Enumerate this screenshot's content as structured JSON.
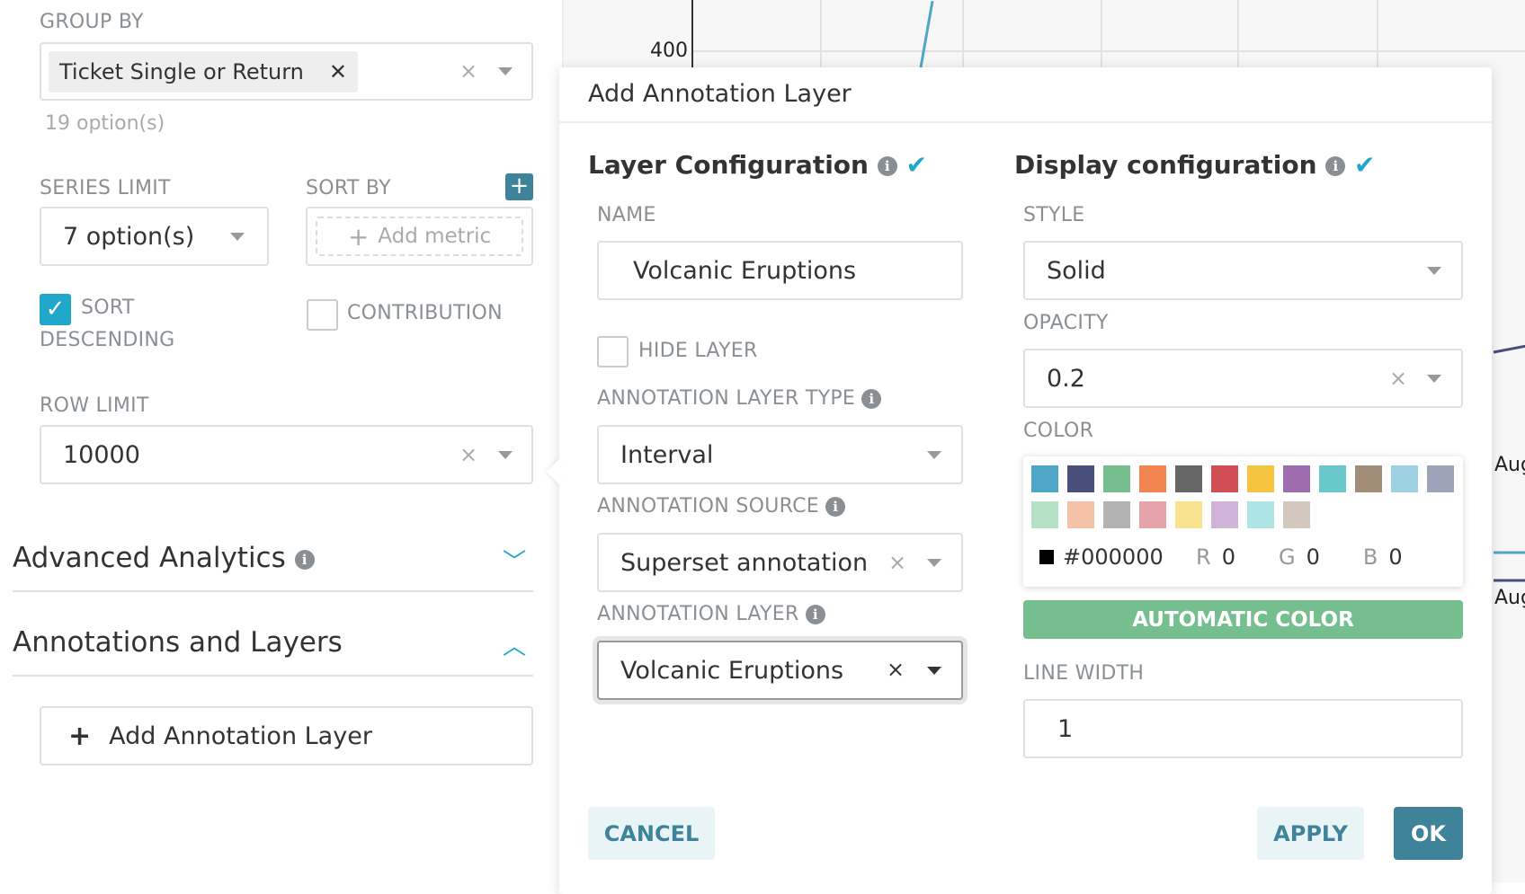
{
  "left": {
    "group_by_label": "GROUP BY",
    "group_by_tag": "Ticket Single or Return",
    "group_by_hint": "19 option(s)",
    "series_limit_label": "SERIES LIMIT",
    "series_limit_value": "7 option(s)",
    "sort_by_label": "SORT BY",
    "add_metric": "Add metric",
    "sort_desc_label_1": "SORT",
    "sort_desc_label_2": "DESCENDING",
    "sort_desc_checked": true,
    "contribution_label": "CONTRIBUTION",
    "contribution_checked": false,
    "row_limit_label": "ROW LIMIT",
    "row_limit_value": "10000",
    "advanced_analytics": "Advanced Analytics",
    "annotations_layers": "Annotations and Layers",
    "add_annotation_layer": "Add Annotation Layer"
  },
  "chart": {
    "y_tick": "400",
    "x_ticks": [
      "Aug",
      "Aug"
    ]
  },
  "popover": {
    "title": "Add Annotation Layer",
    "layer_config": {
      "heading": "Layer Configuration",
      "name_label": "NAME",
      "name_value": "Volcanic Eruptions",
      "hide_layer_label": "HIDE LAYER",
      "hide_layer_checked": false,
      "type_label": "ANNOTATION LAYER TYPE",
      "type_value": "Interval",
      "source_label": "ANNOTATION SOURCE",
      "source_value": "Superset annotation",
      "layer_label": "ANNOTATION LAYER",
      "layer_value": "Volcanic Eruptions"
    },
    "display_config": {
      "heading": "Display configuration",
      "style_label": "STYLE",
      "style_value": "Solid",
      "opacity_label": "OPACITY",
      "opacity_value": "0.2",
      "color_label": "COLOR",
      "swatches": [
        "#4FA7C8",
        "#474F7A",
        "#74BF8D",
        "#F2854F",
        "#666666",
        "#D24E57",
        "#F5C542",
        "#9E6DAF",
        "#69C9CA",
        "#A08E78",
        "#9DD0E0",
        "#9EA4B8",
        "#B6E1C6",
        "#F4C2A6",
        "#B3B3B3",
        "#E5A4AA",
        "#F9E38E",
        "#CFB3D8",
        "#AFE4E4",
        "#D2C8BE"
      ],
      "hex": "#000000",
      "r_label": "R",
      "r": "0",
      "g_label": "G",
      "g": "0",
      "b_label": "B",
      "b": "0",
      "auto_color": "AUTOMATIC COLOR",
      "line_width_label": "LINE WIDTH",
      "line_width_value": "1"
    },
    "cancel": "CANCEL",
    "apply": "APPLY",
    "ok": "OK"
  },
  "colors": {
    "accent": "#20A7C9",
    "primary_btn": "#3E8399",
    "auto_color": "#74BF8D",
    "chart_line": "#4FA7C8"
  }
}
